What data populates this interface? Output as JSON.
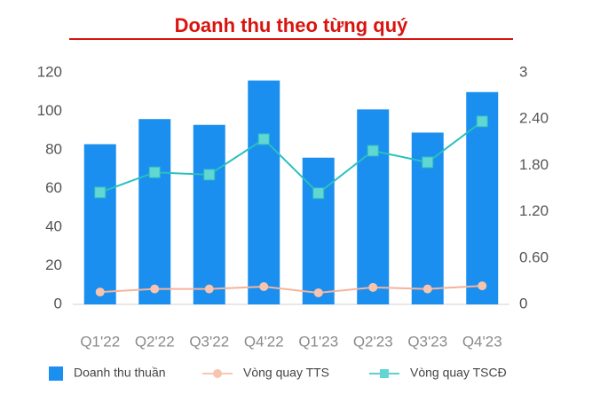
{
  "chart_data": {
    "type": "bar",
    "title": "Doanh thu theo từng quý",
    "categories": [
      "Q1'22",
      "Q2'22",
      "Q3'22",
      "Q4'22",
      "Q1'23",
      "Q2'23",
      "Q3'23",
      "Q4'23"
    ],
    "series": [
      {
        "name": "Doanh thu thuần",
        "type": "bar",
        "color": "#1a8fef",
        "values": [
          83,
          96,
          93,
          116,
          76,
          101,
          89,
          110
        ]
      },
      {
        "name": "Vòng quay TTS",
        "type": "line",
        "axis": "y2",
        "color": "#f5b39a",
        "values": [
          0.16,
          0.2,
          0.2,
          0.23,
          0.15,
          0.22,
          0.2,
          0.24
        ]
      },
      {
        "name": "Vòng quay TSCĐ",
        "type": "line",
        "axis": "y2",
        "color": "#2bbfbf",
        "values": [
          1.45,
          1.71,
          1.68,
          2.14,
          1.44,
          1.99,
          1.84,
          2.37
        ]
      }
    ],
    "ylim": [
      0,
      120
    ],
    "yticks": [
      0,
      20,
      40,
      60,
      80,
      100,
      120
    ],
    "y2lim": [
      0,
      3
    ],
    "y2ticks": [
      0,
      {
        "value": 0.6,
        "label": "0.60"
      },
      {
        "value": 1.2,
        "label": "1.20"
      },
      {
        "value": 1.8,
        "label": "1.80"
      },
      {
        "value": 2.4,
        "label": "2.40"
      },
      3
    ],
    "grid": false,
    "legend": "bottom"
  }
}
